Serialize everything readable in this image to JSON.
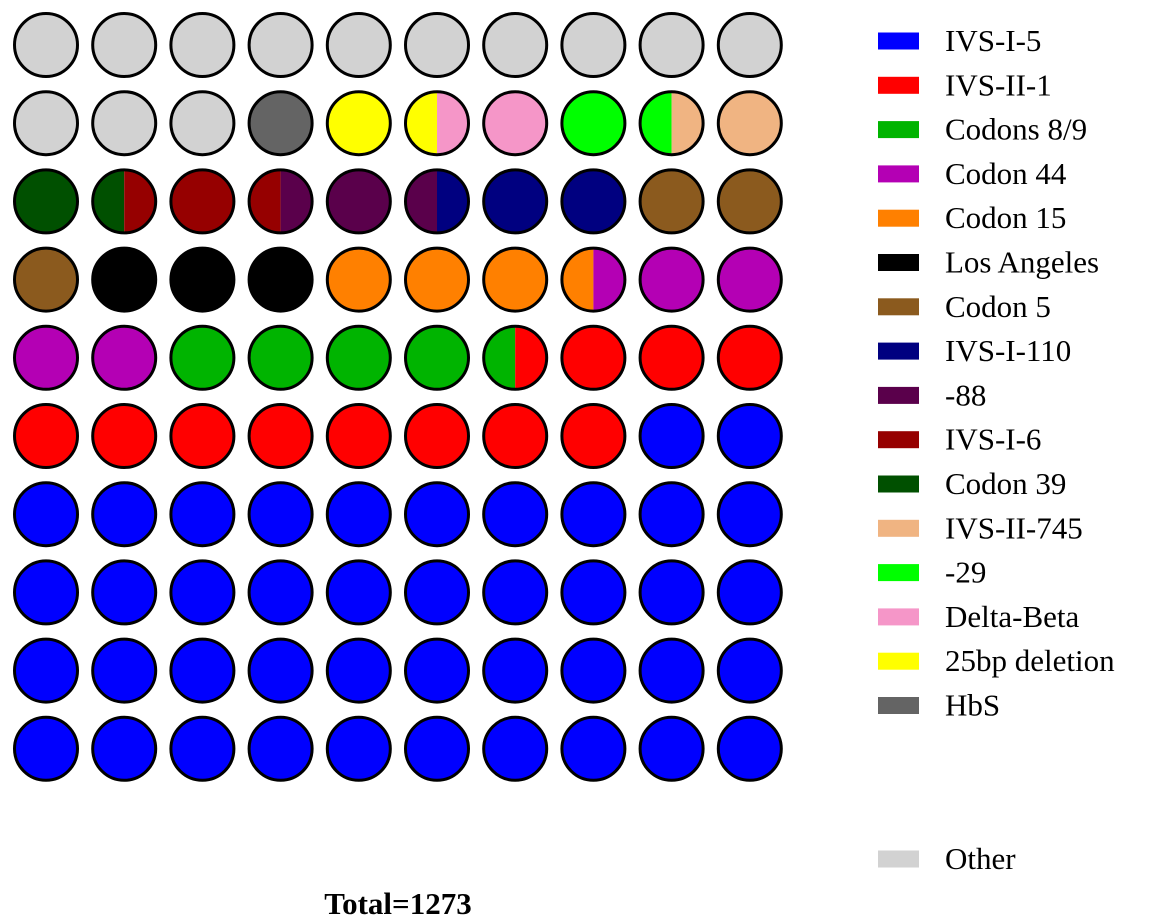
{
  "chart_data": {
    "type": "waffle",
    "grid": {
      "rows": 10,
      "cols": 10
    },
    "total_label": "Total=1273",
    "legend": [
      {
        "label": "IVS-I-5",
        "color": "#0000ff"
      },
      {
        "label": "IVS-II-1",
        "color": "#ff0000"
      },
      {
        "label": "Codons 8/9",
        "color": "#00b400"
      },
      {
        "label": "Codon 44",
        "color": "#b400b4"
      },
      {
        "label": "Codon 15",
        "color": "#ff8000"
      },
      {
        "label": "Los Angeles",
        "color": "#000000"
      },
      {
        "label": "Codon 5",
        "color": "#8b5a1e"
      },
      {
        "label": "IVS-I-110",
        "color": "#000080"
      },
      {
        "label": "-88",
        "color": "#5a004b"
      },
      {
        "label": "IVS-I-6",
        "color": "#960000"
      },
      {
        "label": "Codon 39",
        "color": "#005000"
      },
      {
        "label": "IVS-II-745",
        "color": "#f0b482"
      },
      {
        "label": "-29",
        "color": "#00ff00"
      },
      {
        "label": "Delta-Beta",
        "color": "#f596c8"
      },
      {
        "label": "25bp deletion",
        "color": "#ffff00"
      },
      {
        "label": "HbS",
        "color": "#646464"
      },
      {
        "label": "Other",
        "color": "#d2d2d2"
      }
    ],
    "cells": [
      [
        "Other",
        "Other"
      ],
      [
        "Other",
        "Other"
      ],
      [
        "Other",
        "Other"
      ],
      [
        "Other",
        "Other"
      ],
      [
        "Other",
        "Other"
      ],
      [
        "Other",
        "Other"
      ],
      [
        "Other",
        "Other"
      ],
      [
        "Other",
        "Other"
      ],
      [
        "Other",
        "Other"
      ],
      [
        "Other",
        "Other"
      ],
      [
        "Other",
        "Other"
      ],
      [
        "Other",
        "Other"
      ],
      [
        "Other",
        "Other"
      ],
      [
        "HbS",
        "HbS"
      ],
      [
        "25bp deletion",
        "25bp deletion"
      ],
      [
        "25bp deletion",
        "Delta-Beta"
      ],
      [
        "Delta-Beta",
        "Delta-Beta"
      ],
      [
        "-29",
        "-29"
      ],
      [
        "-29",
        "IVS-II-745"
      ],
      [
        "IVS-II-745",
        "IVS-II-745"
      ],
      [
        "Codon 39",
        "Codon 39"
      ],
      [
        "Codon 39",
        "IVS-I-6"
      ],
      [
        "IVS-I-6",
        "IVS-I-6"
      ],
      [
        "IVS-I-6",
        "-88"
      ],
      [
        "-88",
        "-88"
      ],
      [
        "-88",
        "IVS-I-110"
      ],
      [
        "IVS-I-110",
        "IVS-I-110"
      ],
      [
        "IVS-I-110",
        "IVS-I-110"
      ],
      [
        "Codon 5",
        "Codon 5"
      ],
      [
        "Codon 5",
        "Codon 5"
      ],
      [
        "Codon 5",
        "Codon 5"
      ],
      [
        "Los Angeles",
        "Los Angeles"
      ],
      [
        "Los Angeles",
        "Los Angeles"
      ],
      [
        "Los Angeles",
        "Los Angeles"
      ],
      [
        "Codon 15",
        "Codon 15"
      ],
      [
        "Codon 15",
        "Codon 15"
      ],
      [
        "Codon 15",
        "Codon 15"
      ],
      [
        "Codon 15",
        "Codon 44"
      ],
      [
        "Codon 44",
        "Codon 44"
      ],
      [
        "Codon 44",
        "Codon 44"
      ],
      [
        "Codon 44",
        "Codon 44"
      ],
      [
        "Codon 44",
        "Codon 44"
      ],
      [
        "Codons 8/9",
        "Codons 8/9"
      ],
      [
        "Codons 8/9",
        "Codons 8/9"
      ],
      [
        "Codons 8/9",
        "Codons 8/9"
      ],
      [
        "Codons 8/9",
        "Codons 8/9"
      ],
      [
        "Codons 8/9",
        "IVS-II-1"
      ],
      [
        "IVS-II-1",
        "IVS-II-1"
      ],
      [
        "IVS-II-1",
        "IVS-II-1"
      ],
      [
        "IVS-II-1",
        "IVS-II-1"
      ],
      [
        "IVS-II-1",
        "IVS-II-1"
      ],
      [
        "IVS-II-1",
        "IVS-II-1"
      ],
      [
        "IVS-II-1",
        "IVS-II-1"
      ],
      [
        "IVS-II-1",
        "IVS-II-1"
      ],
      [
        "IVS-II-1",
        "IVS-II-1"
      ],
      [
        "IVS-II-1",
        "IVS-II-1"
      ],
      [
        "IVS-II-1",
        "IVS-II-1"
      ],
      [
        "IVS-II-1",
        "IVS-II-1"
      ],
      [
        "IVS-I-5",
        "IVS-I-5"
      ],
      [
        "IVS-I-5",
        "IVS-I-5"
      ],
      [
        "IVS-I-5",
        "IVS-I-5"
      ],
      [
        "IVS-I-5",
        "IVS-I-5"
      ],
      [
        "IVS-I-5",
        "IVS-I-5"
      ],
      [
        "IVS-I-5",
        "IVS-I-5"
      ],
      [
        "IVS-I-5",
        "IVS-I-5"
      ],
      [
        "IVS-I-5",
        "IVS-I-5"
      ],
      [
        "IVS-I-5",
        "IVS-I-5"
      ],
      [
        "IVS-I-5",
        "IVS-I-5"
      ],
      [
        "IVS-I-5",
        "IVS-I-5"
      ],
      [
        "IVS-I-5",
        "IVS-I-5"
      ],
      [
        "IVS-I-5",
        "IVS-I-5"
      ],
      [
        "IVS-I-5",
        "IVS-I-5"
      ],
      [
        "IVS-I-5",
        "IVS-I-5"
      ],
      [
        "IVS-I-5",
        "IVS-I-5"
      ],
      [
        "IVS-I-5",
        "IVS-I-5"
      ],
      [
        "IVS-I-5",
        "IVS-I-5"
      ],
      [
        "IVS-I-5",
        "IVS-I-5"
      ],
      [
        "IVS-I-5",
        "IVS-I-5"
      ],
      [
        "IVS-I-5",
        "IVS-I-5"
      ],
      [
        "IVS-I-5",
        "IVS-I-5"
      ],
      [
        "IVS-I-5",
        "IVS-I-5"
      ],
      [
        "IVS-I-5",
        "IVS-I-5"
      ],
      [
        "IVS-I-5",
        "IVS-I-5"
      ],
      [
        "IVS-I-5",
        "IVS-I-5"
      ],
      [
        "IVS-I-5",
        "IVS-I-5"
      ],
      [
        "IVS-I-5",
        "IVS-I-5"
      ],
      [
        "IVS-I-5",
        "IVS-I-5"
      ],
      [
        "IVS-I-5",
        "IVS-I-5"
      ],
      [
        "IVS-I-5",
        "IVS-I-5"
      ],
      [
        "IVS-I-5",
        "IVS-I-5"
      ],
      [
        "IVS-I-5",
        "IVS-I-5"
      ],
      [
        "IVS-I-5",
        "IVS-I-5"
      ],
      [
        "IVS-I-5",
        "IVS-I-5"
      ],
      [
        "IVS-I-5",
        "IVS-I-5"
      ],
      [
        "IVS-I-5",
        "IVS-I-5"
      ],
      [
        "IVS-I-5",
        "IVS-I-5"
      ],
      [
        "IVS-I-5",
        "IVS-I-5"
      ],
      [
        "IVS-I-5",
        "IVS-I-5"
      ],
      [
        "IVS-I-5",
        "IVS-I-5"
      ],
      [
        "IVS-I-5",
        "IVS-I-5"
      ]
    ]
  }
}
